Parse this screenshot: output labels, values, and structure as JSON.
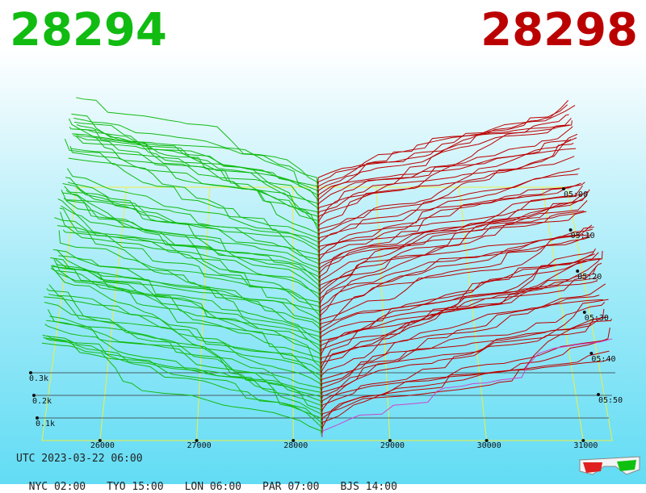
{
  "bid_price": "28294",
  "ask_price": "28298",
  "footer": {
    "utc": "UTC 2023-03-22 06:00",
    "zones": [
      "NYC 02:00",
      "TYO 15:00",
      "LON 06:00",
      "PAR 07:00",
      "BJS 14:00"
    ]
  },
  "colors": {
    "bid": "#11bb11",
    "ask": "#bb0000",
    "grid": "#eeee44",
    "latest": "#cc44cc"
  },
  "icons": [
    "3d-glasses-icon"
  ],
  "chart_data": {
    "type": "area",
    "x_axis": {
      "ticks": [
        26000,
        27000,
        28000,
        29000,
        30000,
        31000
      ],
      "range": [
        25400,
        31300
      ]
    },
    "depth_axis": {
      "ticks": [
        "0.1k",
        "0.2k",
        "0.3k"
      ]
    },
    "time_axis": {
      "ticks": [
        "05:00",
        "05:10",
        "05:20",
        "05:30",
        "05:40",
        "05:50"
      ]
    },
    "mid_price": 28296,
    "snapshots": 60
  }
}
